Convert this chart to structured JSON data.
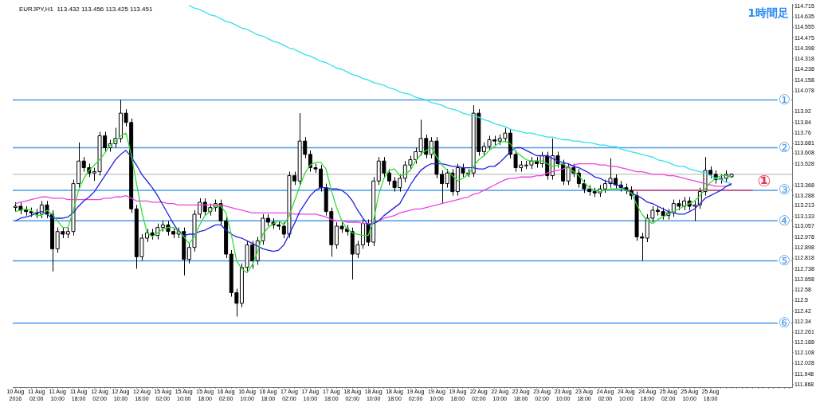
{
  "chart_data": {
    "type": "candlestick",
    "title": "EURJPY,H1  113.432 113.456 113.425 113.451",
    "annotations": [
      "1時間足"
    ],
    "categories": [
      "10 Aug 2016",
      null,
      null,
      null,
      "11 Aug 02:00",
      null,
      null,
      null,
      "11 Aug 10:00",
      null,
      null,
      null,
      "11 Aug 18:00",
      null,
      null,
      null,
      "12 Aug 02:00",
      null,
      null,
      null,
      "12 Aug 10:00",
      null,
      null,
      null,
      "12 Aug 18:00",
      null,
      null,
      null,
      "15 Aug 02:00",
      null,
      null,
      null,
      "15 Aug 10:00",
      null,
      null,
      null,
      "15 Aug 18:00",
      null,
      null,
      null,
      "16 Aug 02:00",
      null,
      null,
      null,
      "16 Aug 10:00",
      null,
      null,
      null,
      "16 Aug 18:00",
      null,
      null,
      null,
      "17 Aug 02:00",
      null,
      null,
      null,
      "17 Aug 10:00",
      null,
      null,
      null,
      "17 Aug 18:00",
      null,
      null,
      null,
      "18 Aug 02:00",
      null,
      null,
      null,
      "18 Aug 10:00",
      null,
      null,
      null,
      "18 Aug 18:00",
      null,
      null,
      null,
      "19 Aug 02:00",
      null,
      null,
      null,
      "19 Aug 10:00",
      null,
      null,
      null,
      "19 Aug 18:00",
      null,
      null,
      null,
      "22 Aug 02:00",
      null,
      null,
      null,
      "22 Aug 10:00",
      null,
      null,
      null,
      "22 Aug 18:00",
      null,
      null,
      null,
      "23 Aug 02:00",
      null,
      null,
      null,
      "23 Aug 10:00",
      null,
      null,
      null,
      "23 Aug 18:00",
      null,
      null,
      null,
      "24 Aug 02:00",
      null,
      null,
      null,
      "24 Aug 10:00",
      null,
      null,
      null,
      "24 Aug 18:00",
      null,
      null,
      null,
      "25 Aug 02:00",
      null,
      null,
      null,
      "25 Aug 10:00",
      null,
      null,
      null,
      "25 Aug 18:00",
      null,
      null,
      null,
      null,
      null,
      null,
      null,
      null,
      null,
      null,
      null,
      null,
      null,
      null,
      null
    ],
    "color": "#000000",
    "ohlc": [
      [
        113.2,
        113.24,
        113.17,
        113.21
      ],
      [
        113.21,
        113.24,
        113.15,
        113.18
      ],
      [
        113.18,
        113.21,
        113.14,
        113.17
      ],
      [
        113.17,
        113.2,
        113.13,
        113.16
      ],
      [
        113.16,
        113.19,
        113.12,
        113.15
      ],
      [
        113.15,
        113.25,
        113.12,
        113.22
      ],
      [
        113.22,
        113.25,
        113.12,
        113.15
      ],
      [
        113.15,
        113.18,
        112.72,
        112.89
      ],
      [
        112.89,
        113.05,
        112.86,
        113.02
      ],
      [
        113.02,
        113.05,
        112.97,
        113.0
      ],
      [
        113.0,
        113.05,
        112.97,
        113.02
      ],
      [
        113.02,
        113.41,
        112.99,
        113.38
      ],
      [
        113.38,
        113.69,
        113.35,
        113.55
      ],
      [
        113.55,
        113.58,
        113.47,
        113.5
      ],
      [
        113.5,
        113.53,
        113.43,
        113.46
      ],
      [
        113.46,
        113.5,
        113.4,
        113.47
      ],
      [
        113.47,
        113.77,
        113.44,
        113.74
      ],
      [
        113.74,
        113.77,
        113.62,
        113.65
      ],
      [
        113.65,
        113.71,
        113.62,
        113.68
      ],
      [
        113.68,
        113.8,
        113.65,
        113.72
      ],
      [
        113.72,
        114.01,
        113.69,
        113.91
      ],
      [
        113.91,
        113.94,
        113.81,
        113.84
      ],
      [
        113.84,
        113.87,
        113.16,
        113.19
      ],
      [
        113.19,
        113.22,
        112.74,
        112.83
      ],
      [
        112.83,
        113.0,
        112.8,
        112.97
      ],
      [
        112.97,
        113.04,
        112.94,
        113.01
      ],
      [
        113.01,
        113.04,
        112.96,
        112.99
      ],
      [
        112.99,
        113.08,
        112.96,
        113.05
      ],
      [
        113.05,
        113.1,
        113.02,
        113.07
      ],
      [
        113.07,
        113.1,
        112.99,
        113.02
      ],
      [
        113.02,
        113.05,
        112.97,
        113.0
      ],
      [
        113.0,
        113.05,
        112.97,
        113.02
      ],
      [
        113.02,
        113.05,
        112.69,
        112.81
      ],
      [
        112.81,
        112.93,
        112.78,
        112.9
      ],
      [
        112.9,
        113.18,
        112.87,
        113.15
      ],
      [
        113.15,
        113.27,
        113.12,
        113.24
      ],
      [
        113.24,
        113.27,
        113.14,
        113.17
      ],
      [
        113.17,
        113.23,
        113.14,
        113.2
      ],
      [
        113.2,
        113.26,
        113.17,
        113.23
      ],
      [
        113.23,
        113.26,
        113.07,
        113.1
      ],
      [
        113.1,
        113.13,
        112.82,
        112.85
      ],
      [
        112.85,
        112.88,
        112.53,
        112.56
      ],
      [
        112.56,
        112.59,
        112.38,
        112.48
      ],
      [
        112.48,
        112.78,
        112.45,
        112.75
      ],
      [
        112.75,
        112.95,
        112.72,
        112.92
      ],
      [
        112.92,
        112.95,
        112.74,
        112.8
      ],
      [
        112.8,
        112.98,
        112.77,
        112.95
      ],
      [
        112.95,
        113.15,
        112.92,
        113.12
      ],
      [
        113.12,
        113.15,
        113.06,
        113.09
      ],
      [
        113.09,
        113.12,
        113.04,
        113.07
      ],
      [
        113.07,
        113.1,
        113.03,
        113.06
      ],
      [
        113.06,
        113.09,
        112.97,
        113.0
      ],
      [
        113.0,
        113.47,
        112.97,
        113.44
      ],
      [
        113.44,
        113.47,
        113.37,
        113.4
      ],
      [
        113.4,
        113.91,
        113.37,
        113.7
      ],
      [
        113.7,
        113.73,
        113.57,
        113.6
      ],
      [
        113.6,
        113.63,
        113.47,
        113.5
      ],
      [
        113.5,
        113.53,
        113.46,
        113.49
      ],
      [
        113.49,
        113.52,
        113.32,
        113.35
      ],
      [
        113.35,
        113.38,
        113.14,
        113.17
      ],
      [
        113.17,
        113.2,
        112.83,
        112.92
      ],
      [
        112.92,
        113.09,
        112.89,
        113.06
      ],
      [
        113.06,
        113.09,
        113.01,
        113.04
      ],
      [
        113.04,
        113.07,
        112.99,
        113.02
      ],
      [
        113.02,
        113.05,
        112.66,
        112.85
      ],
      [
        112.85,
        112.95,
        112.82,
        112.92
      ],
      [
        112.92,
        113.11,
        112.89,
        113.08
      ],
      [
        113.08,
        113.11,
        112.91,
        112.94
      ],
      [
        112.94,
        113.43,
        112.91,
        113.4
      ],
      [
        113.4,
        113.58,
        113.37,
        113.55
      ],
      [
        113.55,
        113.58,
        113.43,
        113.46
      ],
      [
        113.46,
        113.49,
        113.37,
        113.4
      ],
      [
        113.4,
        113.43,
        113.32,
        113.35
      ],
      [
        113.35,
        113.45,
        113.32,
        113.42
      ],
      [
        113.42,
        113.55,
        113.39,
        113.52
      ],
      [
        113.52,
        113.59,
        113.49,
        113.56
      ],
      [
        113.56,
        113.65,
        113.53,
        113.62
      ],
      [
        113.62,
        113.86,
        113.59,
        113.72
      ],
      [
        113.72,
        113.75,
        113.57,
        113.6
      ],
      [
        113.6,
        113.73,
        113.57,
        113.7
      ],
      [
        113.7,
        113.73,
        113.42,
        113.45
      ],
      [
        113.45,
        113.48,
        113.23,
        113.38
      ],
      [
        113.38,
        113.49,
        113.35,
        113.46
      ],
      [
        113.46,
        113.49,
        113.29,
        113.32
      ],
      [
        113.32,
        113.53,
        113.29,
        113.5
      ],
      [
        113.5,
        113.53,
        113.43,
        113.46
      ],
      [
        113.46,
        113.49,
        113.43,
        113.46
      ],
      [
        113.46,
        113.97,
        113.43,
        113.91
      ],
      [
        113.91,
        113.94,
        113.59,
        113.62
      ],
      [
        113.62,
        113.69,
        113.59,
        113.66
      ],
      [
        113.66,
        113.74,
        113.63,
        113.71
      ],
      [
        113.71,
        113.74,
        113.67,
        113.7
      ],
      [
        113.7,
        113.75,
        113.67,
        113.72
      ],
      [
        113.72,
        113.8,
        113.69,
        113.76
      ],
      [
        113.76,
        113.79,
        113.57,
        113.6
      ],
      [
        113.6,
        113.63,
        113.47,
        113.5
      ],
      [
        113.5,
        113.55,
        113.47,
        113.52
      ],
      [
        113.52,
        113.55,
        113.49,
        113.52
      ],
      [
        113.52,
        113.58,
        113.49,
        113.55
      ],
      [
        113.55,
        113.58,
        113.5,
        113.53
      ],
      [
        113.53,
        113.62,
        113.5,
        113.59
      ],
      [
        113.59,
        113.62,
        113.41,
        113.44
      ],
      [
        113.44,
        113.72,
        113.41,
        113.59
      ],
      [
        113.59,
        113.62,
        113.5,
        113.53
      ],
      [
        113.53,
        113.56,
        113.37,
        113.4
      ],
      [
        113.4,
        113.53,
        113.37,
        113.5
      ],
      [
        113.5,
        113.53,
        113.43,
        113.46
      ],
      [
        113.46,
        113.49,
        113.35,
        113.38
      ],
      [
        113.38,
        113.41,
        113.31,
        113.34
      ],
      [
        113.34,
        113.37,
        113.29,
        113.32
      ],
      [
        113.32,
        113.35,
        113.28,
        113.31
      ],
      [
        113.31,
        113.37,
        113.28,
        113.34
      ],
      [
        113.34,
        113.41,
        113.31,
        113.38
      ],
      [
        113.38,
        113.57,
        113.35,
        113.42
      ],
      [
        113.42,
        113.45,
        113.34,
        113.37
      ],
      [
        113.37,
        113.4,
        113.32,
        113.35
      ],
      [
        113.35,
        113.38,
        113.3,
        113.33
      ],
      [
        113.33,
        113.36,
        113.26,
        113.29
      ],
      [
        113.29,
        113.32,
        112.95,
        112.98
      ],
      [
        112.98,
        113.01,
        112.8,
        112.97
      ],
      [
        112.97,
        113.15,
        112.94,
        113.12
      ],
      [
        113.12,
        113.21,
        113.09,
        113.18
      ],
      [
        113.18,
        113.21,
        113.14,
        113.17
      ],
      [
        113.17,
        113.2,
        113.11,
        113.14
      ],
      [
        113.14,
        113.19,
        113.11,
        113.16
      ],
      [
        113.16,
        113.26,
        113.13,
        113.23
      ],
      [
        113.23,
        113.26,
        113.18,
        113.21
      ],
      [
        113.21,
        113.28,
        113.18,
        113.25
      ],
      [
        113.25,
        113.28,
        113.18,
        113.21
      ],
      [
        113.21,
        113.25,
        113.1,
        113.22
      ],
      [
        113.22,
        113.35,
        113.19,
        113.32
      ],
      [
        113.32,
        113.58,
        113.29,
        113.48
      ],
      [
        113.48,
        113.51,
        113.42,
        113.45
      ],
      [
        113.45,
        113.48,
        113.38,
        113.41
      ],
      [
        113.41,
        113.45,
        113.38,
        113.42
      ],
      [
        113.42,
        113.48,
        113.39,
        113.45
      ],
      [
        113.432,
        113.456,
        113.425,
        113.451
      ],
      null,
      null,
      null,
      null,
      null,
      null,
      null,
      null,
      null,
      null,
      null
    ],
    "series": [
      {
        "type": "line",
        "color": "#33dd33",
        "values": [
          113.17,
          113.18,
          113.19,
          113.18,
          113.14,
          113.14,
          113.18,
          113.15,
          113.1,
          113.05,
          113.05,
          113.18,
          113.33,
          113.42,
          113.48,
          113.52,
          113.56,
          113.61,
          113.67,
          113.7,
          113.74,
          113.76,
          113.6,
          113.38,
          113.17,
          113.01,
          112.98,
          113.01,
          113.04,
          113.05,
          113.05,
          113.02,
          112.98,
          112.93,
          112.98,
          113.07,
          113.14,
          113.17,
          113.21,
          113.21,
          113.16,
          113.0,
          112.8,
          112.74,
          112.71,
          112.77,
          112.87,
          113.0,
          113.05,
          113.08,
          113.1,
          113.07,
          113.14,
          113.25,
          113.36,
          113.46,
          113.52,
          113.54,
          113.54,
          113.49,
          113.33,
          113.2,
          113.1,
          113.04,
          113.01,
          113.0,
          112.99,
          112.99,
          113.1,
          113.3,
          113.42,
          113.48,
          113.49,
          113.44,
          113.45,
          113.48,
          113.55,
          113.6,
          113.63,
          113.65,
          113.58,
          113.52,
          113.48,
          113.44,
          113.4,
          113.42,
          113.45,
          113.51,
          113.56,
          113.59,
          113.63,
          113.66,
          113.69,
          113.7,
          113.68,
          113.62,
          113.59,
          113.56,
          113.55,
          113.55,
          113.55,
          113.53,
          113.51,
          113.52,
          113.53,
          113.5,
          113.47,
          113.44,
          113.39,
          113.35,
          113.33,
          113.32,
          113.33,
          113.34,
          113.34,
          113.34,
          113.33,
          113.31,
          113.22,
          113.15,
          113.1,
          113.08,
          113.11,
          113.13,
          113.15,
          113.17,
          113.19,
          113.21,
          113.23,
          113.25,
          113.29,
          113.34,
          113.39,
          113.42,
          113.44,
          113.44,
          113.43,
          null,
          null,
          null,
          null,
          null,
          null,
          null,
          null,
          null,
          null,
          null
        ]
      },
      {
        "type": "line",
        "color": "#2222dd",
        "values": [
          113.1,
          113.12,
          113.13,
          113.14,
          113.16,
          113.17,
          113.15,
          113.12,
          113.12,
          113.12,
          113.13,
          113.16,
          113.21,
          113.25,
          113.28,
          113.32,
          113.38,
          113.44,
          113.5,
          113.56,
          113.6,
          113.63,
          113.58,
          113.52,
          113.45,
          113.4,
          113.35,
          113.29,
          113.22,
          113.15,
          113.08,
          113.02,
          112.99,
          113.0,
          113.0,
          113.02,
          113.03,
          113.05,
          113.07,
          113.07,
          113.03,
          113.0,
          112.98,
          112.97,
          112.95,
          112.93,
          112.91,
          112.89,
          112.88,
          112.87,
          112.88,
          112.92,
          113.0,
          113.08,
          113.17,
          113.23,
          113.29,
          113.33,
          113.35,
          113.35,
          113.34,
          113.34,
          113.33,
          113.3,
          113.25,
          113.18,
          113.12,
          113.07,
          113.08,
          113.1,
          113.14,
          113.17,
          113.2,
          113.23,
          113.3,
          113.37,
          113.43,
          113.48,
          113.51,
          113.53,
          113.53,
          113.53,
          113.52,
          113.51,
          113.51,
          113.5,
          113.5,
          113.5,
          113.49,
          113.49,
          113.51,
          113.51,
          113.54,
          113.58,
          113.62,
          113.65,
          113.65,
          113.63,
          113.61,
          113.59,
          113.59,
          113.59,
          113.57,
          113.55,
          113.54,
          113.53,
          113.51,
          113.5,
          113.48,
          113.46,
          113.43,
          113.42,
          113.4,
          113.39,
          113.37,
          113.36,
          113.33,
          113.31,
          113.29,
          113.27,
          113.24,
          113.23,
          113.21,
          113.19,
          113.17,
          113.16,
          113.15,
          113.15,
          113.17,
          113.19,
          113.23,
          113.27,
          113.29,
          113.31,
          113.33,
          113.36,
          113.38,
          null,
          null,
          null,
          null,
          null,
          null,
          null,
          null,
          null,
          null,
          null
        ]
      },
      {
        "type": "line",
        "color": "#ee44dd",
        "values": [
          113.23,
          113.24,
          113.25,
          113.26,
          113.27,
          113.28,
          113.28,
          113.27,
          113.27,
          113.27,
          113.26,
          113.26,
          113.26,
          113.26,
          113.26,
          113.26,
          113.26,
          113.27,
          113.27,
          113.28,
          113.28,
          113.29,
          113.27,
          113.25,
          113.25,
          113.25,
          113.24,
          113.24,
          113.24,
          113.23,
          113.23,
          113.22,
          113.22,
          113.22,
          113.22,
          113.22,
          113.22,
          113.22,
          113.22,
          113.22,
          113.21,
          113.2,
          113.19,
          113.18,
          113.17,
          113.16,
          113.16,
          113.16,
          113.16,
          113.16,
          113.16,
          113.16,
          113.16,
          113.15,
          113.15,
          113.15,
          113.15,
          113.15,
          113.14,
          113.13,
          113.11,
          113.1,
          113.1,
          113.09,
          113.09,
          113.09,
          113.08,
          113.08,
          113.08,
          113.1,
          113.12,
          113.13,
          113.14,
          113.16,
          113.17,
          113.18,
          113.19,
          113.19,
          113.2,
          113.21,
          113.22,
          113.23,
          113.24,
          113.25,
          113.26,
          113.27,
          113.28,
          113.3,
          113.31,
          113.33,
          113.35,
          113.37,
          113.39,
          113.41,
          113.42,
          113.42,
          113.43,
          113.43,
          113.43,
          113.44,
          113.44,
          113.46,
          113.47,
          113.48,
          113.49,
          113.51,
          113.52,
          113.53,
          113.53,
          113.53,
          113.53,
          113.52,
          113.52,
          113.51,
          113.51,
          113.5,
          113.49,
          113.48,
          113.47,
          113.47,
          113.46,
          113.45,
          113.45,
          113.45,
          113.44,
          113.44,
          113.43,
          113.42,
          113.41,
          113.4,
          113.39,
          113.38,
          113.37,
          113.36,
          113.36,
          113.36,
          113.37,
          null,
          null,
          null,
          null,
          null,
          null,
          null,
          null,
          null,
          null,
          null
        ]
      },
      {
        "type": "line",
        "color": "#33e0e8",
        "values": [
          null,
          null,
          null,
          null,
          null,
          null,
          null,
          null,
          null,
          null,
          null,
          null,
          null,
          null,
          null,
          null,
          null,
          null,
          null,
          null,
          null,
          null,
          null,
          null,
          null,
          null,
          null,
          null,
          null,
          null,
          null,
          null,
          null,
          114.72,
          114.7,
          114.69,
          114.67,
          114.65,
          114.64,
          114.62,
          114.6,
          114.59,
          114.57,
          114.55,
          114.54,
          114.52,
          114.5,
          114.49,
          114.47,
          114.45,
          114.44,
          114.42,
          114.4,
          114.39,
          114.37,
          114.35,
          114.34,
          114.32,
          114.3,
          114.29,
          114.27,
          114.25,
          114.24,
          114.22,
          114.2,
          114.19,
          114.17,
          114.16,
          114.14,
          114.13,
          114.12,
          114.1,
          114.09,
          114.07,
          114.06,
          114.05,
          114.03,
          114.02,
          114.01,
          113.99,
          113.98,
          113.97,
          113.95,
          113.94,
          113.93,
          113.91,
          113.9,
          113.89,
          113.88,
          113.86,
          113.85,
          113.83,
          113.82,
          113.81,
          113.79,
          113.78,
          113.77,
          113.76,
          113.76,
          113.75,
          113.74,
          113.73,
          113.73,
          113.72,
          113.71,
          113.71,
          113.7,
          113.7,
          113.69,
          113.69,
          113.68,
          113.67,
          113.67,
          113.66,
          113.66,
          113.64,
          113.63,
          113.62,
          113.61,
          113.6,
          113.59,
          113.58,
          113.56,
          113.55,
          113.54,
          113.52,
          113.51,
          113.51,
          113.49,
          113.48,
          113.47,
          113.46,
          113.44,
          113.42,
          113.41,
          113.39,
          113.38,
          null,
          null,
          null,
          null,
          null,
          null,
          null,
          null,
          null,
          null,
          null
        ]
      },
      {
        "type": "line",
        "name": "①",
        "color": "#e8305a",
        "values": [
          null,
          null,
          null,
          null,
          null,
          null,
          null,
          null,
          null,
          null,
          null,
          null,
          null,
          null,
          null,
          null,
          null,
          null,
          null,
          null,
          null,
          null,
          null,
          null,
          null,
          null,
          null,
          null,
          null,
          null,
          null,
          null,
          null,
          null,
          null,
          null,
          null,
          null,
          null,
          null,
          null,
          null,
          null,
          null,
          null,
          null,
          null,
          null,
          null,
          null,
          null,
          null,
          null,
          null,
          null,
          null,
          null,
          null,
          null,
          null,
          null,
          null,
          null,
          null,
          null,
          null,
          null,
          null,
          null,
          null,
          null,
          null,
          null,
          null,
          null,
          null,
          null,
          null,
          null,
          null,
          null,
          null,
          null,
          null,
          null,
          null,
          null,
          null,
          null,
          null,
          null,
          null,
          null,
          null,
          null,
          null,
          null,
          null,
          null,
          null,
          null,
          null,
          null,
          null,
          null,
          null,
          null,
          null,
          null,
          null,
          null,
          null,
          null,
          null,
          null,
          null,
          null,
          113.33,
          113.33,
          113.33,
          113.33,
          113.33,
          113.33,
          113.33,
          113.33,
          113.33,
          113.33,
          113.33,
          113.33,
          113.33,
          113.33,
          113.33,
          113.33,
          113.33,
          113.33,
          113.33,
          113.33,
          113.33,
          113.33,
          113.33,
          113.33,
          null,
          null,
          null,
          null,
          null,
          null,
          null
        ]
      }
    ],
    "ref_lines": [
      {
        "axis": "y",
        "value": 114.01,
        "label": "①",
        "color": "#4a9ae8"
      },
      {
        "axis": "y",
        "value": 113.65,
        "label": "②",
        "color": "#4a9ae8"
      },
      {
        "axis": "y",
        "value": 113.33,
        "label": "③",
        "color": "#4a9ae8"
      },
      {
        "axis": "y",
        "value": 113.1,
        "label": "④",
        "color": "#4a9ae8"
      },
      {
        "axis": "y",
        "value": 112.8,
        "label": "⑤",
        "color": "#4a9ae8"
      },
      {
        "axis": "y",
        "value": 112.33,
        "label": "⑥",
        "color": "#4a9ae8"
      },
      {
        "axis": "y",
        "value": 113.451,
        "color": "#cccccc"
      }
    ],
    "ylim": [
      111.85,
      114.73
    ],
    "yticks": [
      114.715,
      114.635,
      114.555,
      114.475,
      114.398,
      114.318,
      114.238,
      114.158,
      114.078,
      113.92,
      113.84,
      113.76,
      113.681,
      113.608,
      113.528,
      113.368,
      113.288,
      113.213,
      113.133,
      113.057,
      112.978,
      112.898,
      112.818,
      112.738,
      112.658,
      112.58,
      112.5,
      112.42,
      112.34,
      112.261,
      112.188,
      112.108,
      112.028,
      111.948,
      111.868
    ]
  }
}
